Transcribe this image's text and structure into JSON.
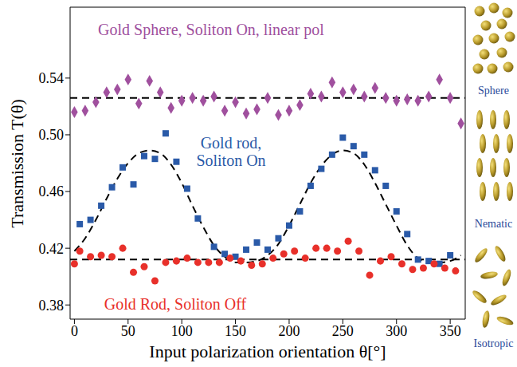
{
  "chart_data": {
    "type": "scatter",
    "x_label": "Input polarization orientation θ[°]",
    "y_label": "Transmission T(θ)",
    "xlim": [
      -4,
      364
    ],
    "xticks": [
      0,
      50,
      100,
      150,
      200,
      250,
      300,
      350
    ],
    "ylim": [
      0.37,
      0.59
    ],
    "yticks": [
      0.38,
      0.42,
      0.46,
      {
        "value": 0.5,
        "label": "0.50"
      },
      0.54
    ],
    "series": [
      {
        "name": "Gold Sphere, Soliton On, linear pol",
        "type": "scatter",
        "color": "#a0509e",
        "marker": "diamond",
        "x": [
          0,
          10,
          20,
          30,
          40,
          50,
          60,
          70,
          80,
          90,
          100,
          110,
          120,
          130,
          140,
          150,
          160,
          170,
          180,
          190,
          200,
          210,
          220,
          230,
          240,
          250,
          260,
          270,
          280,
          290,
          300,
          310,
          320,
          330,
          340,
          350,
          360
        ],
        "values": [
          0.516,
          0.517,
          0.523,
          0.53,
          0.532,
          0.539,
          0.522,
          0.538,
          0.53,
          0.519,
          0.524,
          0.526,
          0.524,
          0.527,
          0.517,
          0.523,
          0.515,
          0.518,
          0.526,
          0.514,
          0.517,
          0.521,
          0.529,
          0.527,
          0.537,
          0.53,
          0.532,
          0.527,
          0.533,
          0.526,
          0.524,
          0.525,
          0.524,
          0.527,
          0.539,
          0.526,
          0.508
        ]
      },
      {
        "name": "Gold rod, Soliton On",
        "type": "scatter",
        "color": "#2a5aa8",
        "marker": "square",
        "x": [
          5,
          15,
          25,
          35,
          45,
          55,
          65,
          75,
          85,
          95,
          105,
          115,
          130,
          140,
          150,
          160,
          170,
          180,
          190,
          200,
          210,
          220,
          230,
          240,
          250,
          260,
          270,
          280,
          290,
          300,
          310,
          320,
          330,
          340,
          350
        ],
        "values": [
          0.437,
          0.44,
          0.45,
          0.463,
          0.477,
          0.465,
          0.485,
          0.483,
          0.501,
          0.481,
          0.462,
          0.441,
          0.421,
          0.416,
          0.414,
          0.419,
          0.424,
          0.419,
          0.427,
          0.436,
          0.446,
          0.464,
          0.476,
          0.486,
          0.498,
          0.492,
          0.486,
          0.475,
          0.464,
          0.446,
          0.43,
          0.412,
          0.411,
          0.409,
          0.415
        ]
      },
      {
        "name": "Gold Rod, Soliton Off",
        "type": "scatter",
        "color": "#e8302a",
        "marker": "circle",
        "x": [
          0,
          5,
          15,
          25,
          35,
          45,
          55,
          65,
          75,
          85,
          95,
          105,
          115,
          125,
          135,
          145,
          155,
          165,
          175,
          185,
          195,
          205,
          215,
          225,
          235,
          245,
          255,
          265,
          275,
          285,
          295,
          305,
          315,
          325,
          335,
          345,
          355
        ],
        "values": [
          0.409,
          0.418,
          0.414,
          0.415,
          0.414,
          0.42,
          0.403,
          0.407,
          0.397,
          0.41,
          0.411,
          0.413,
          0.41,
          0.41,
          0.41,
          0.413,
          0.411,
          0.408,
          0.409,
          0.413,
          0.416,
          0.418,
          0.413,
          0.42,
          0.42,
          0.418,
          0.425,
          0.418,
          0.401,
          0.411,
          0.414,
          0.409,
          0.405,
          0.406,
          0.409,
          0.406,
          0.404
        ]
      },
      {
        "type": "line",
        "line_style": "dashed",
        "color": "#000000",
        "x": [
          -4,
          364
        ],
        "values": [
          0.526,
          0.526
        ]
      },
      {
        "type": "line",
        "line_style": "dashed",
        "color": "#000000",
        "x": [
          0,
          10,
          20,
          30,
          40,
          50,
          60,
          70,
          80,
          90,
          100,
          110,
          120,
          130,
          140,
          150,
          160,
          170,
          180,
          190,
          200,
          210,
          220,
          230,
          240,
          250,
          260,
          270,
          280,
          290,
          300,
          310,
          320,
          330,
          340,
          350,
          360
        ],
        "values": [
          0.418,
          0.427,
          0.44,
          0.455,
          0.469,
          0.48,
          0.487,
          0.489,
          0.487,
          0.479,
          0.466,
          0.45,
          0.435,
          0.422,
          0.414,
          0.41,
          0.41,
          0.411,
          0.415,
          0.423,
          0.436,
          0.451,
          0.466,
          0.478,
          0.486,
          0.489,
          0.487,
          0.479,
          0.466,
          0.451,
          0.436,
          0.422,
          0.413,
          0.41,
          0.41,
          0.411,
          0.415
        ]
      },
      {
        "type": "line",
        "line_style": "dashed",
        "color": "#000000",
        "x": [
          -4,
          364
        ],
        "values": [
          0.412,
          0.412
        ]
      }
    ]
  },
  "illustrations": [
    "Sphere",
    "Nematic",
    "Isotropic"
  ]
}
